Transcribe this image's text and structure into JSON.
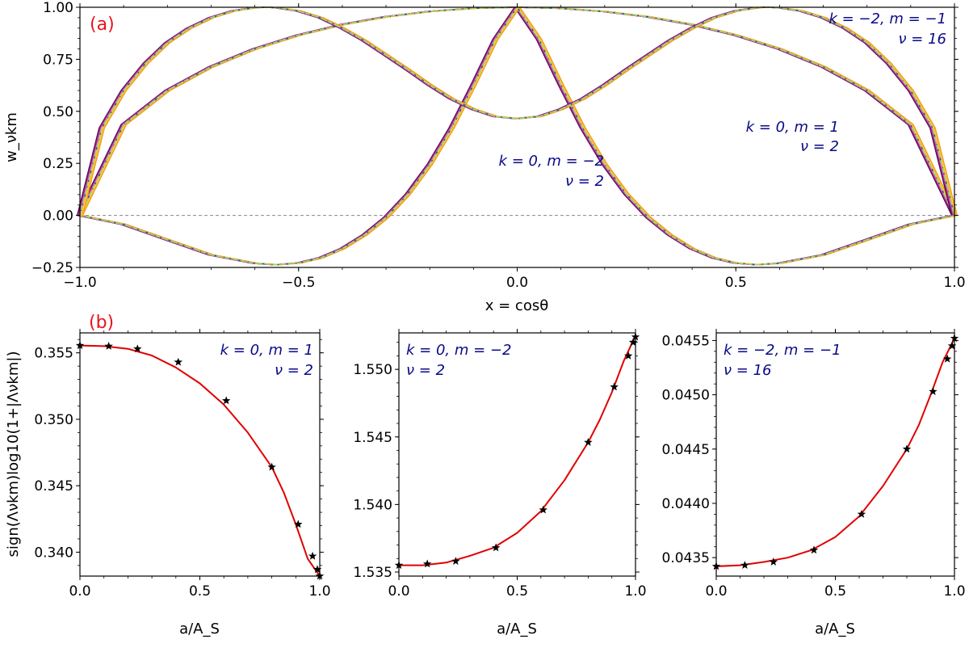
{
  "chart_data": [
    {
      "type": "line",
      "panel": "a",
      "tag": "(a)",
      "xlabel": "x = cosθ",
      "ylabel": "w_νkm",
      "xlim": [
        -1.0,
        1.0
      ],
      "ylim": [
        -0.25,
        1.0
      ],
      "xticks": [
        -1.0,
        -0.5,
        0.0,
        0.5,
        1.0
      ],
      "xtick_labels": [
        "−1.0",
        "−0.5",
        "0.0",
        "0.5",
        "1.0"
      ],
      "yticks": [
        -0.25,
        0.0,
        0.25,
        0.5,
        0.75,
        1.0
      ],
      "ytick_labels": [
        "−0.25",
        "0.00",
        "0.25",
        "0.50",
        "0.75",
        "1.00"
      ],
      "zero_line": true,
      "series_colors": [
        "#4b0055",
        "#8e1a7a",
        "#c0399a",
        "#e36ba5",
        "#f6a5b0",
        "#ffb347",
        "#ffd633",
        "#f0a020"
      ],
      "reference_colors": [
        "#1f4fbf",
        "#90e070"
      ],
      "series": [
        {
          "name": "k=0, m=1, ν=2",
          "x": [
            -1.0,
            -0.9,
            -0.8,
            -0.7,
            -0.6,
            -0.5,
            -0.4,
            -0.3,
            -0.2,
            -0.1,
            0.0,
            0.1,
            0.2,
            0.3,
            0.4,
            0.5,
            0.6,
            0.7,
            0.8,
            0.9,
            1.0
          ],
          "y": [
            0.0,
            0.436,
            0.6,
            0.714,
            0.8,
            0.866,
            0.917,
            0.954,
            0.98,
            0.995,
            1.0,
            0.995,
            0.98,
            0.954,
            0.917,
            0.866,
            0.8,
            0.714,
            0.6,
            0.436,
            0.0
          ]
        },
        {
          "name": "k=0, m=−2, ν=2",
          "x": [
            -1.0,
            -0.9,
            -0.8,
            -0.7,
            -0.6,
            -0.55,
            -0.5,
            -0.45,
            -0.4,
            -0.35,
            -0.3,
            -0.25,
            -0.2,
            -0.15,
            -0.1,
            -0.05,
            0.0,
            0.05,
            0.1,
            0.15,
            0.2,
            0.25,
            0.3,
            0.35,
            0.4,
            0.45,
            0.5,
            0.55,
            0.6,
            0.7,
            0.8,
            0.9,
            1.0
          ],
          "y": [
            0.0,
            -0.043,
            -0.117,
            -0.19,
            -0.23,
            -0.237,
            -0.229,
            -0.204,
            -0.16,
            -0.095,
            -0.01,
            0.102,
            0.245,
            0.42,
            0.627,
            0.846,
            1.0,
            0.846,
            0.627,
            0.42,
            0.245,
            0.102,
            -0.01,
            -0.095,
            -0.16,
            -0.204,
            -0.229,
            -0.237,
            -0.23,
            -0.19,
            -0.117,
            -0.043,
            0.0
          ]
        },
        {
          "name": "k=−2, m=−1, ν=16",
          "x": [
            -1.0,
            -0.95,
            -0.9,
            -0.85,
            -0.8,
            -0.75,
            -0.7,
            -0.65,
            -0.6,
            -0.57,
            -0.55,
            -0.5,
            -0.45,
            -0.4,
            -0.35,
            -0.3,
            -0.25,
            -0.2,
            -0.15,
            -0.1,
            -0.05,
            0.0,
            0.05,
            0.1,
            0.15,
            0.2,
            0.25,
            0.3,
            0.35,
            0.4,
            0.45,
            0.5,
            0.55,
            0.57,
            0.6,
            0.65,
            0.7,
            0.75,
            0.8,
            0.85,
            0.9,
            0.95,
            1.0
          ],
          "y": [
            0.0,
            0.42,
            0.6,
            0.73,
            0.83,
            0.9,
            0.95,
            0.982,
            0.998,
            1.0,
            0.998,
            0.982,
            0.95,
            0.9,
            0.84,
            0.77,
            0.7,
            0.626,
            0.56,
            0.51,
            0.475,
            0.465,
            0.475,
            0.51,
            0.56,
            0.626,
            0.7,
            0.77,
            0.84,
            0.9,
            0.95,
            0.982,
            0.998,
            1.0,
            0.998,
            0.982,
            0.95,
            0.9,
            0.83,
            0.73,
            0.6,
            0.42,
            0.0
          ]
        }
      ],
      "annotations": [
        {
          "line1": "k = −2, m = −1",
          "line2": "ν = 16"
        },
        {
          "line1": "k = 0, m = 1",
          "line2": "ν = 2"
        },
        {
          "line1": "k = 0, m = −2",
          "line2": "ν = 2"
        }
      ]
    },
    {
      "type": "line",
      "panel": "b1",
      "tag": "(b)",
      "xlabel": "a/A_S",
      "ylabel": "sign(Λνkm)log10(1+|Λνkm|)",
      "xlim": [
        0.0,
        1.0
      ],
      "ylim": [
        0.3382,
        0.3565
      ],
      "xticks": [
        0.0,
        0.5,
        1.0
      ],
      "xtick_labels": [
        "0.0",
        "0.5",
        "1.0"
      ],
      "yticks": [
        0.34,
        0.345,
        0.35,
        0.355
      ],
      "ytick_labels": [
        "0.340",
        "0.345",
        "0.350",
        "0.355"
      ],
      "annotation": {
        "line1": "k = 0, m = 1",
        "line2": "ν = 2"
      },
      "curve": {
        "x": [
          0.0,
          0.1,
          0.2,
          0.3,
          0.4,
          0.5,
          0.6,
          0.7,
          0.8,
          0.85,
          0.9,
          0.95,
          1.0
        ],
        "y": [
          0.35555,
          0.3555,
          0.3553,
          0.3548,
          0.3539,
          0.3527,
          0.3511,
          0.349,
          0.3464,
          0.3445,
          0.3421,
          0.3395,
          0.3382
        ]
      },
      "points": {
        "x": [
          0.0,
          0.12,
          0.24,
          0.41,
          0.61,
          0.8,
          0.91,
          0.97,
          0.99,
          1.0
        ],
        "y": [
          0.35555,
          0.3555,
          0.3553,
          0.3543,
          0.3514,
          0.3464,
          0.3421,
          0.3397,
          0.3387,
          0.3382
        ]
      }
    },
    {
      "type": "line",
      "panel": "b2",
      "xlabel": "a/A_S",
      "xlim": [
        0.0,
        1.0
      ],
      "ylim": [
        1.5347,
        1.5527
      ],
      "xticks": [
        0.0,
        0.5,
        1.0
      ],
      "xtick_labels": [
        "0.0",
        "0.5",
        "1.0"
      ],
      "yticks": [
        1.535,
        1.54,
        1.545,
        1.55
      ],
      "ytick_labels": [
        "1.535",
        "1.540",
        "1.545",
        "1.550"
      ],
      "annotation": {
        "line1": "k = 0, m = −2",
        "line2": "ν = 2"
      },
      "curve": {
        "x": [
          0.0,
          0.1,
          0.2,
          0.3,
          0.4,
          0.5,
          0.6,
          0.7,
          0.8,
          0.85,
          0.9,
          0.95,
          1.0
        ],
        "y": [
          1.5355,
          1.5355,
          1.5357,
          1.5362,
          1.5368,
          1.5379,
          1.5395,
          1.5418,
          1.5446,
          1.5463,
          1.5483,
          1.5506,
          1.5525
        ]
      },
      "points": {
        "x": [
          0.0,
          0.12,
          0.24,
          0.41,
          0.61,
          0.8,
          0.91,
          0.97,
          0.99,
          1.0
        ],
        "y": [
          1.5355,
          1.5356,
          1.5358,
          1.5368,
          1.5396,
          1.5446,
          1.5487,
          1.551,
          1.552,
          1.5524
        ]
      }
    },
    {
      "type": "line",
      "panel": "b3",
      "xlabel": "a/A_S",
      "xlim": [
        0.0,
        1.0
      ],
      "ylim": [
        0.04333,
        0.04557
      ],
      "xticks": [
        0.0,
        0.5,
        1.0
      ],
      "xtick_labels": [
        "0.0",
        "0.5",
        "1.0"
      ],
      "yticks": [
        0.0435,
        0.044,
        0.0445,
        0.045,
        0.0455
      ],
      "ytick_labels": [
        "0.0435",
        "0.0440",
        "0.0445",
        "0.0450",
        "0.0455"
      ],
      "annotation": {
        "line1": "k = −2, m = −1",
        "line2": "ν = 16"
      },
      "curve": {
        "x": [
          0.0,
          0.1,
          0.2,
          0.3,
          0.4,
          0.5,
          0.6,
          0.7,
          0.8,
          0.85,
          0.9,
          0.95,
          1.0
        ],
        "y": [
          0.04342,
          0.04343,
          0.04346,
          0.0435,
          0.04357,
          0.04369,
          0.04388,
          0.04416,
          0.0445,
          0.04472,
          0.045,
          0.0453,
          0.04552
        ]
      },
      "points": {
        "x": [
          0.0,
          0.12,
          0.24,
          0.41,
          0.61,
          0.8,
          0.91,
          0.97,
          0.99,
          1.0
        ],
        "y": [
          0.04342,
          0.04343,
          0.04346,
          0.04357,
          0.0439,
          0.0445,
          0.04503,
          0.04533,
          0.04545,
          0.04552
        ]
      }
    }
  ]
}
